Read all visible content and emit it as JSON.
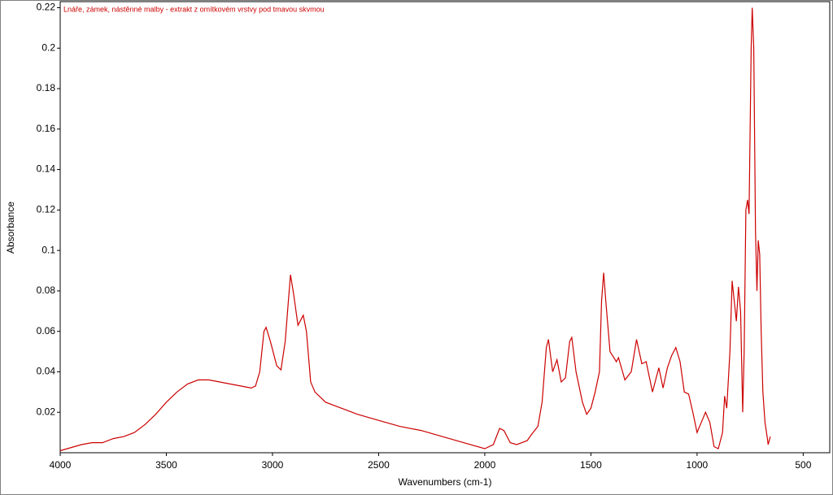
{
  "chart_data": {
    "type": "line",
    "title": "Lnáře, zámek, nástěnné malby - extrakt z omítkovém vrstvy pod tmavou skvmou",
    "x_label": "Wavenumbers (cm-1)",
    "y_label": "Absorbance",
    "xlim": [
      4000,
      375
    ],
    "ylim": [
      0,
      0.223
    ],
    "xticks": [
      4000,
      3500,
      3000,
      2500,
      2000,
      1500,
      1000,
      500
    ],
    "yticks": [
      0.02,
      0.04,
      0.06,
      0.08,
      0.1,
      0.12,
      0.14,
      0.16,
      0.18,
      0.2,
      0.22
    ],
    "color": "#cc0000",
    "x": [
      4000,
      3900,
      3850,
      3800,
      3750,
      3700,
      3650,
      3600,
      3550,
      3500,
      3450,
      3400,
      3350,
      3300,
      3250,
      3200,
      3150,
      3100,
      3080,
      3060,
      3040,
      3030,
      3010,
      2980,
      2960,
      2940,
      2925,
      2915,
      2900,
      2880,
      2855,
      2840,
      2820,
      2800,
      2750,
      2700,
      2650,
      2600,
      2500,
      2400,
      2300,
      2200,
      2100,
      2000,
      1960,
      1930,
      1910,
      1880,
      1850,
      1800,
      1780,
      1750,
      1730,
      1710,
      1700,
      1680,
      1660,
      1640,
      1620,
      1600,
      1590,
      1570,
      1540,
      1520,
      1500,
      1480,
      1460,
      1450,
      1440,
      1430,
      1410,
      1380,
      1370,
      1340,
      1310,
      1285,
      1260,
      1240,
      1210,
      1190,
      1180,
      1160,
      1140,
      1120,
      1100,
      1080,
      1060,
      1040,
      1020,
      1000,
      980,
      960,
      940,
      920,
      900,
      880,
      870,
      860,
      845,
      835,
      825,
      815,
      805,
      795,
      785,
      778,
      770,
      762,
      755,
      745,
      740,
      733,
      725,
      718,
      712,
      705,
      698,
      690,
      680,
      670,
      665,
      660,
      655
    ],
    "values": [
      0.001,
      0.004,
      0.005,
      0.005,
      0.007,
      0.008,
      0.01,
      0.014,
      0.019,
      0.025,
      0.03,
      0.034,
      0.036,
      0.036,
      0.035,
      0.034,
      0.033,
      0.032,
      0.033,
      0.04,
      0.06,
      0.062,
      0.055,
      0.043,
      0.041,
      0.055,
      0.075,
      0.088,
      0.078,
      0.063,
      0.068,
      0.06,
      0.035,
      0.03,
      0.025,
      0.023,
      0.021,
      0.019,
      0.016,
      0.013,
      0.011,
      0.008,
      0.005,
      0.002,
      0.004,
      0.012,
      0.011,
      0.005,
      0.004,
      0.006,
      0.009,
      0.013,
      0.025,
      0.052,
      0.056,
      0.04,
      0.046,
      0.035,
      0.037,
      0.055,
      0.057,
      0.04,
      0.025,
      0.019,
      0.022,
      0.03,
      0.04,
      0.075,
      0.089,
      0.075,
      0.05,
      0.045,
      0.047,
      0.036,
      0.04,
      0.056,
      0.044,
      0.045,
      0.03,
      0.038,
      0.042,
      0.032,
      0.042,
      0.048,
      0.052,
      0.045,
      0.03,
      0.029,
      0.02,
      0.01,
      0.015,
      0.02,
      0.015,
      0.003,
      0.002,
      0.01,
      0.028,
      0.022,
      0.05,
      0.085,
      0.075,
      0.065,
      0.082,
      0.07,
      0.02,
      0.05,
      0.12,
      0.125,
      0.118,
      0.2,
      0.22,
      0.2,
      0.11,
      0.08,
      0.105,
      0.098,
      0.06,
      0.03,
      0.015,
      0.008,
      0.004,
      0.006,
      0.008
    ]
  }
}
